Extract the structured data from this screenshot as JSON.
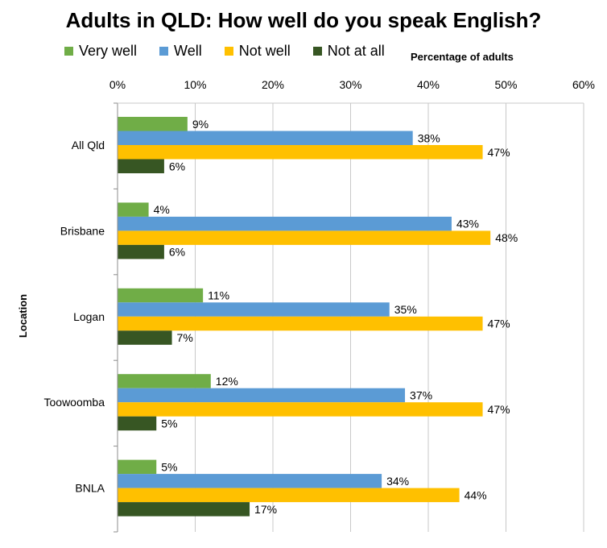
{
  "chart_data": {
    "type": "bar",
    "orientation": "horizontal",
    "title": "Adults in QLD: How well do you speak English?",
    "xlabel": "Percentage of adults",
    "ylabel": "Location",
    "xlim": [
      0,
      60
    ],
    "x_ticks": [
      "0%",
      "10%",
      "20%",
      "30%",
      "40%",
      "50%",
      "60%"
    ],
    "grid": true,
    "legend_position": "top-left",
    "categories": [
      "All Qld",
      "Brisbane",
      "Logan",
      "Toowoomba",
      "BNLA"
    ],
    "series": [
      {
        "name": "Very well",
        "color": "#70ad47",
        "values": [
          9,
          4,
          11,
          12,
          5
        ],
        "labels": [
          "9%",
          "4%",
          "11%",
          "12%",
          "5%"
        ]
      },
      {
        "name": "Well",
        "color": "#5b9bd5",
        "values": [
          38,
          43,
          35,
          37,
          34
        ],
        "labels": [
          "38%",
          "43%",
          "35%",
          "37%",
          "34%"
        ]
      },
      {
        "name": "Not well",
        "color": "#ffc000",
        "values": [
          47,
          48,
          47,
          47,
          44
        ],
        "labels": [
          "47%",
          "48%",
          "47%",
          "47%",
          "44%"
        ]
      },
      {
        "name": "Not at all",
        "color": "#375623",
        "values": [
          6,
          6,
          7,
          5,
          17
        ],
        "labels": [
          "6%",
          "6%",
          "7%",
          "5%",
          "17%"
        ]
      }
    ]
  }
}
